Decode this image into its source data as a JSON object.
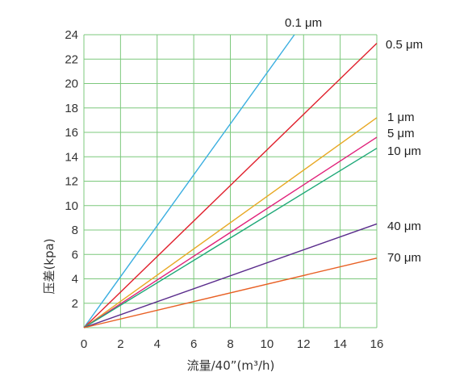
{
  "chart_data": {
    "type": "line",
    "title": "",
    "xlabel": "流量/40”(m³/h)",
    "ylabel": "压差(kpa)",
    "xlim": [
      0,
      16
    ],
    "ylim": [
      0,
      24
    ],
    "x_ticks": [
      "0",
      "2",
      "4",
      "6",
      "8",
      "10",
      "12",
      "14",
      "16"
    ],
    "y_ticks": [
      "2",
      "4",
      "6",
      "8",
      "10",
      "12",
      "14",
      "16",
      "18",
      "20",
      "22",
      "24"
    ],
    "grid": true,
    "grid_color": "#7cc87c",
    "legend": "none",
    "series": [
      {
        "name": "0.1 μm",
        "color": "#3aaee0",
        "x": [
          0,
          11.5
        ],
        "y": [
          0,
          24
        ]
      },
      {
        "name": "0.5 μm",
        "color": "#e0202c",
        "x": [
          0,
          16
        ],
        "y": [
          0,
          23.3
        ]
      },
      {
        "name": "1 μm",
        "color": "#e8a824",
        "x": [
          0,
          16
        ],
        "y": [
          0,
          17.2
        ]
      },
      {
        "name": "5 μm",
        "color": "#e0207a",
        "x": [
          0,
          16
        ],
        "y": [
          0,
          15.6
        ]
      },
      {
        "name": "10 μm",
        "color": "#1ea878",
        "x": [
          0,
          16
        ],
        "y": [
          0,
          14.7
        ]
      },
      {
        "name": "40 μm",
        "color": "#5a2c8c",
        "x": [
          0,
          16
        ],
        "y": [
          0,
          8.5
        ]
      },
      {
        "name": "70 μm",
        "color": "#e86024",
        "x": [
          0,
          16
        ],
        "y": [
          0,
          5.7
        ]
      }
    ]
  }
}
